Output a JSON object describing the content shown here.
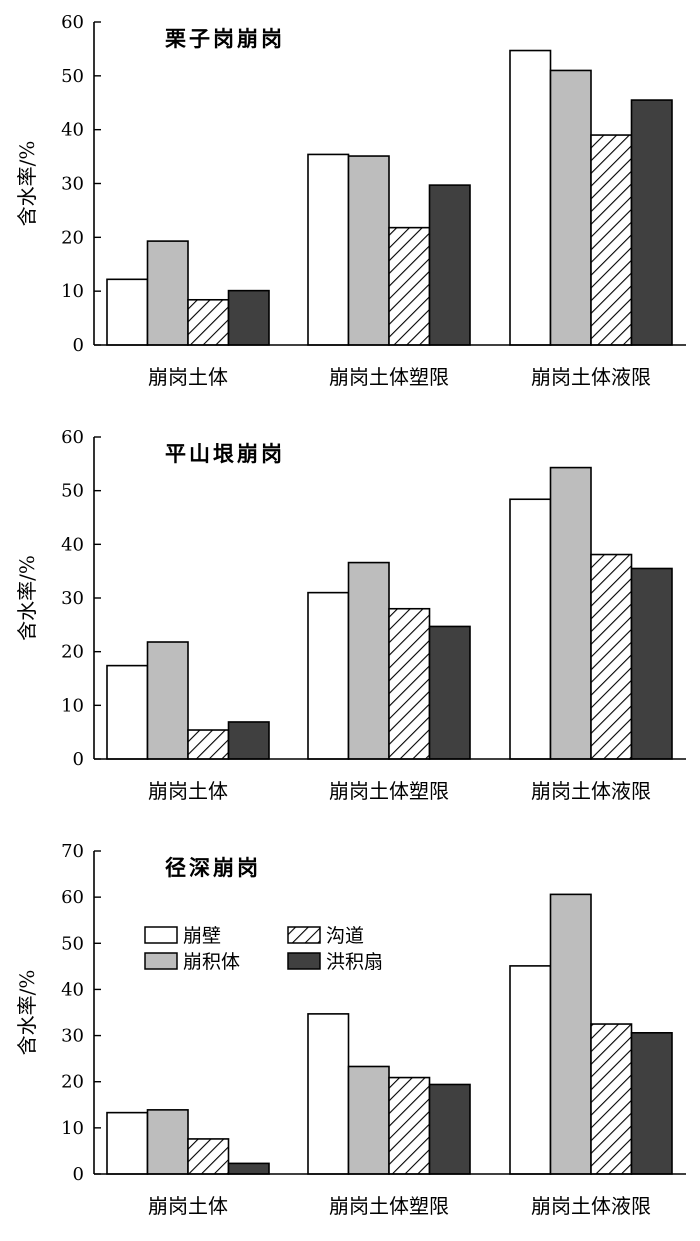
{
  "figure": {
    "legend": {
      "items": [
        {
          "name": "崩壁",
          "fill": "#ffffff",
          "pattern": false
        },
        {
          "name": "崩积体",
          "fill": "#bdbdbd",
          "pattern": false
        },
        {
          "name": "沟道",
          "fill": "#ffffff",
          "pattern": true
        },
        {
          "name": "洪积扇",
          "fill": "#404040",
          "pattern": false
        }
      ]
    }
  },
  "chart_data": [
    {
      "type": "bar",
      "title": "栗子岗崩岗",
      "ylabel": "含水率/%",
      "xlabel": "",
      "ylim": [
        0,
        60
      ],
      "yticks": [
        0,
        10,
        20,
        30,
        40,
        50,
        60
      ],
      "categories": [
        "崩岗土体",
        "崩岗土体塑限",
        "崩岗土体液限"
      ],
      "series": [
        {
          "name": "崩壁",
          "values": [
            12.2,
            35.4,
            54.7
          ]
        },
        {
          "name": "崩积体",
          "values": [
            19.3,
            35.1,
            51.0
          ]
        },
        {
          "name": "沟道",
          "values": [
            8.4,
            21.8,
            39.0
          ]
        },
        {
          "name": "洪积扇",
          "values": [
            10.1,
            29.7,
            45.5
          ]
        }
      ]
    },
    {
      "type": "bar",
      "title": "平山垠崩岗",
      "ylabel": "含水率/%",
      "xlabel": "",
      "ylim": [
        0,
        60
      ],
      "yticks": [
        0,
        10,
        20,
        30,
        40,
        50,
        60
      ],
      "categories": [
        "崩岗土体",
        "崩岗土体塑限",
        "崩岗土体液限"
      ],
      "series": [
        {
          "name": "崩壁",
          "values": [
            17.4,
            31.0,
            48.4
          ]
        },
        {
          "name": "崩积体",
          "values": [
            21.8,
            36.6,
            54.3
          ]
        },
        {
          "name": "沟道",
          "values": [
            5.4,
            28.0,
            38.1
          ]
        },
        {
          "name": "洪积扇",
          "values": [
            6.9,
            24.7,
            35.5
          ]
        }
      ]
    },
    {
      "type": "bar",
      "title": "径深崩岗",
      "ylabel": "含水率/%",
      "xlabel": "",
      "ylim": [
        0,
        70
      ],
      "yticks": [
        0,
        10,
        20,
        30,
        40,
        50,
        60,
        70
      ],
      "categories": [
        "崩岗土体",
        "崩岗土体塑限",
        "崩岗土体液限"
      ],
      "legend": "upper-left",
      "series": [
        {
          "name": "崩壁",
          "values": [
            13.3,
            34.7,
            45.1
          ]
        },
        {
          "name": "崩积体",
          "values": [
            13.9,
            23.3,
            60.6
          ]
        },
        {
          "name": "沟道",
          "values": [
            7.6,
            20.9,
            32.5
          ]
        },
        {
          "name": "洪积扇",
          "values": [
            2.3,
            19.4,
            30.6
          ]
        }
      ]
    }
  ]
}
